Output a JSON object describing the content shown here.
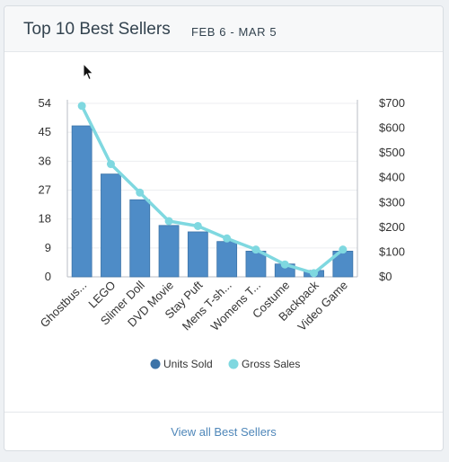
{
  "header": {
    "title": "Top 10 Best Sellers",
    "subtitle": "FEB 6 - MAR 5"
  },
  "footer": {
    "link_label": "View all Best Sellers"
  },
  "colors": {
    "bar": "#4e8cc7",
    "bar_dark": "#3d74a8",
    "line": "#7fd8e0",
    "axis": "#b9bec4",
    "text": "#333333"
  },
  "chart_data": {
    "type": "bar",
    "categories": [
      "Ghostbus...",
      "LEGO",
      "Slimer Doll",
      "DVD Movie",
      "Stay Puft",
      "Mens T-sh...",
      "Womens T...",
      "Costume",
      "Backpack",
      "Video Game"
    ],
    "series": [
      {
        "name": "Units Sold",
        "type": "bar",
        "axis": "left",
        "values": [
          47,
          32,
          24,
          16,
          14,
          11,
          8,
          4,
          2,
          8
        ]
      },
      {
        "name": "Gross Sales",
        "type": "line",
        "axis": "right",
        "values": [
          690,
          455,
          340,
          225,
          205,
          155,
          110,
          50,
          15,
          110
        ]
      }
    ],
    "y_left": {
      "ticks": [
        "0",
        "9",
        "18",
        "27",
        "36",
        "45",
        "54"
      ],
      "ylim": [
        0,
        54
      ]
    },
    "y_right": {
      "ticks": [
        "$0",
        "$100",
        "$200",
        "$300",
        "$400",
        "$500",
        "$600",
        "$700"
      ],
      "ylim": [
        0,
        700
      ]
    },
    "grid": true,
    "legend": {
      "position": "bottom",
      "entries": [
        "Units Sold",
        "Gross Sales"
      ]
    }
  }
}
